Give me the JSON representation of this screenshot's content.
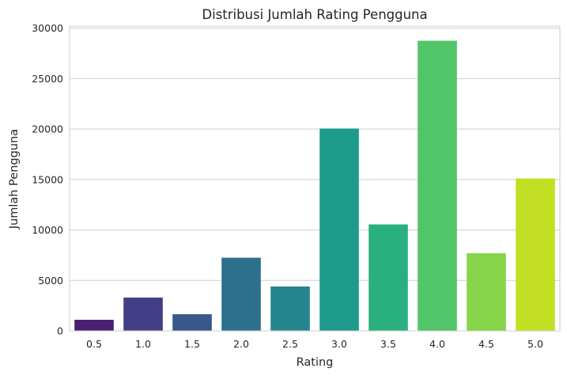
{
  "chart_data": {
    "type": "bar",
    "title": "Distribusi Jumlah Rating Pengguna",
    "xlabel": "Rating",
    "ylabel": "Jumlah Pengguna",
    "categories": [
      "0.5",
      "1.0",
      "1.5",
      "2.0",
      "2.5",
      "3.0",
      "3.5",
      "4.0",
      "4.5",
      "5.0"
    ],
    "values": [
      1100,
      3300,
      1650,
      7250,
      4400,
      20050,
      10550,
      28750,
      7700,
      15100
    ],
    "colors": [
      "#482173",
      "#433e85",
      "#38588c",
      "#2d708e",
      "#25858e",
      "#1e9b8a",
      "#2ab07f",
      "#52c569",
      "#86d549",
      "#c2df23"
    ],
    "yticks": [
      0,
      5000,
      10000,
      15000,
      20000,
      25000,
      30000
    ],
    "ylim": [
      0,
      30200
    ],
    "grid": true,
    "legend": "none"
  }
}
